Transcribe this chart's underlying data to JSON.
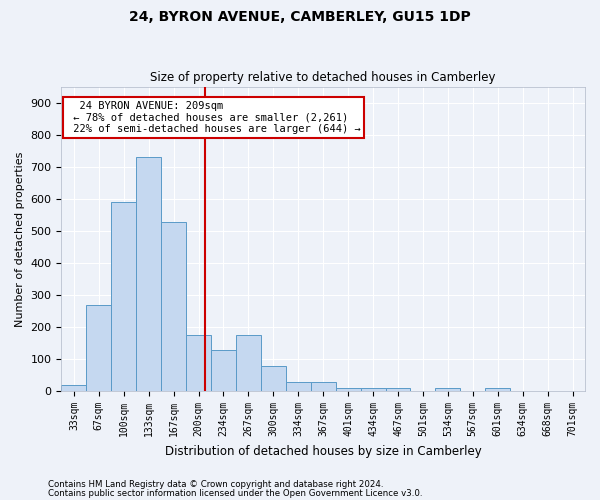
{
  "title1": "24, BYRON AVENUE, CAMBERLEY, GU15 1DP",
  "title2": "Size of property relative to detached houses in Camberley",
  "xlabel": "Distribution of detached houses by size in Camberley",
  "ylabel": "Number of detached properties",
  "categories": [
    "33sqm",
    "67sqm",
    "100sqm",
    "133sqm",
    "167sqm",
    "200sqm",
    "234sqm",
    "267sqm",
    "300sqm",
    "334sqm",
    "367sqm",
    "401sqm",
    "434sqm",
    "467sqm",
    "501sqm",
    "534sqm",
    "567sqm",
    "601sqm",
    "634sqm",
    "668sqm",
    "701sqm"
  ],
  "values": [
    20,
    270,
    590,
    730,
    530,
    175,
    130,
    175,
    80,
    30,
    30,
    10,
    10,
    10,
    0,
    10,
    0,
    10,
    0,
    0,
    0
  ],
  "bar_color": "#c5d8f0",
  "bar_edge_color": "#5a9ac8",
  "property_line_x": 5.26,
  "property_line_color": "#cc0000",
  "annotation_text": "  24 BYRON AVENUE: 209sqm  \n ← 78% of detached houses are smaller (2,261)\n 22% of semi-detached houses are larger (644) →",
  "annotation_box_color": "#ffffff",
  "annotation_box_edge": "#cc0000",
  "footnote1": "Contains HM Land Registry data © Crown copyright and database right 2024.",
  "footnote2": "Contains public sector information licensed under the Open Government Licence v3.0.",
  "background_color": "#eef2f9",
  "grid_color": "#ffffff",
  "ylim": [
    0,
    950
  ],
  "yticks": [
    0,
    100,
    200,
    300,
    400,
    500,
    600,
    700,
    800,
    900
  ],
  "fig_width": 6.0,
  "fig_height": 5.0,
  "dpi": 100
}
